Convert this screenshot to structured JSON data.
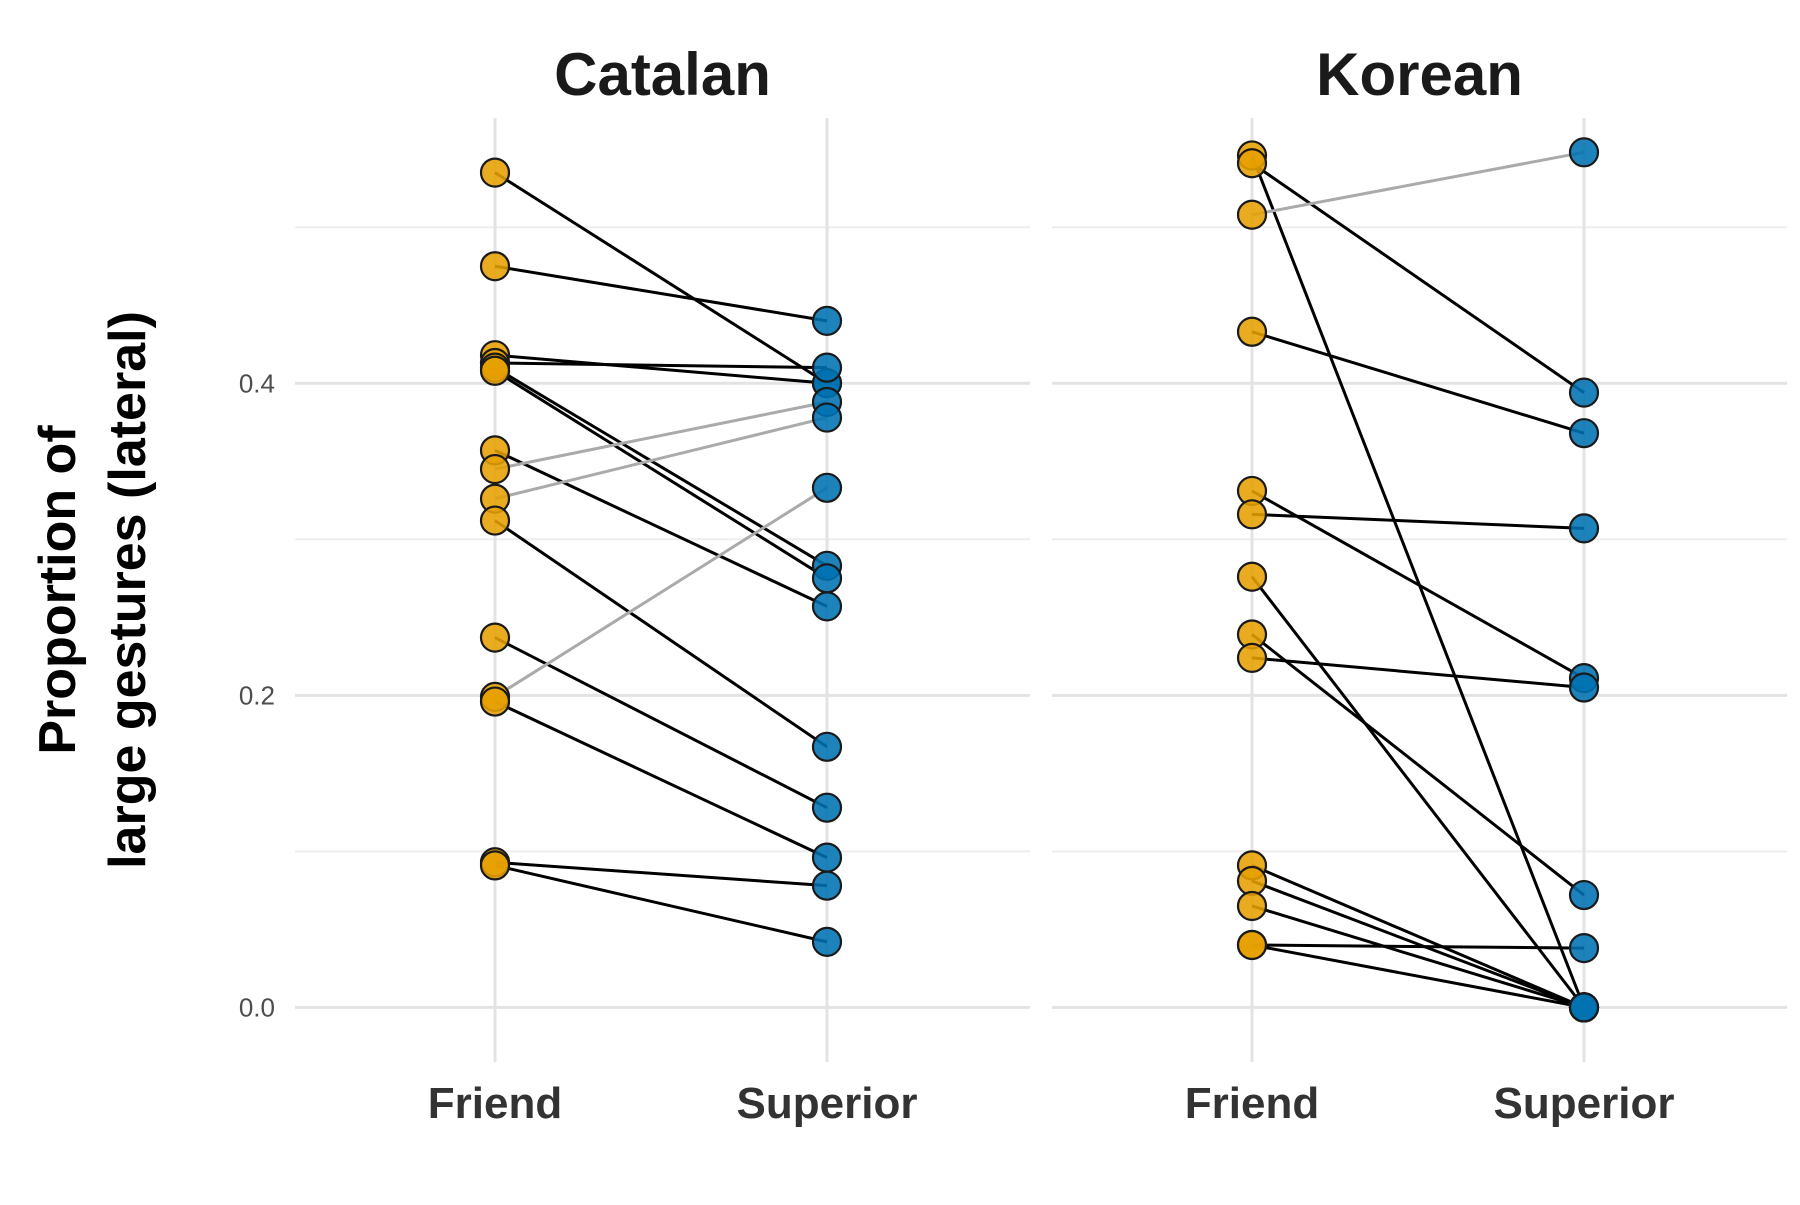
{
  "chart_data": {
    "type": "scatter",
    "subtype": "paired-slope",
    "ylabel_lines": [
      "Proportion of",
      "large gestures (lateral)"
    ],
    "ylim": [
      -0.035,
      0.57
    ],
    "y_ticks": [
      0.0,
      0.2,
      0.4
    ],
    "y_tick_labels": [
      "0.0",
      "0.2",
      "0.4"
    ],
    "y_minor_ticks": [
      0.1,
      0.3,
      0.5
    ],
    "categories": [
      "Friend",
      "Superior"
    ],
    "grid": true,
    "legend": "none",
    "colors": {
      "friend_point": "#E69F00",
      "superior_point": "#0072B2",
      "decrease_line": "#000000",
      "increase_line": "#AAAAAA",
      "grid_major": "#E3E3E3",
      "grid_minor": "#EEEEEE",
      "point_outline": "#1A1A1A"
    },
    "panels": [
      {
        "title": "Catalan",
        "pairs": [
          {
            "friend": 0.535,
            "superior": 0.4
          },
          {
            "friend": 0.475,
            "superior": 0.44
          },
          {
            "friend": 0.418,
            "superior": 0.4
          },
          {
            "friend": 0.413,
            "superior": 0.41
          },
          {
            "friend": 0.41,
            "superior": 0.283
          },
          {
            "friend": 0.408,
            "superior": 0.275
          },
          {
            "friend": 0.357,
            "superior": 0.257
          },
          {
            "friend": 0.345,
            "superior": 0.388
          },
          {
            "friend": 0.326,
            "superior": 0.378
          },
          {
            "friend": 0.312,
            "superior": 0.167
          },
          {
            "friend": 0.237,
            "superior": 0.128
          },
          {
            "friend": 0.199,
            "superior": 0.333
          },
          {
            "friend": 0.196,
            "superior": 0.096
          },
          {
            "friend": 0.093,
            "superior": 0.078
          },
          {
            "friend": 0.091,
            "superior": 0.042
          }
        ]
      },
      {
        "title": "Korean",
        "pairs": [
          {
            "friend": 0.546,
            "superior": 0.0
          },
          {
            "friend": 0.541,
            "superior": 0.394
          },
          {
            "friend": 0.508,
            "superior": 0.548
          },
          {
            "friend": 0.433,
            "superior": 0.368
          },
          {
            "friend": 0.331,
            "superior": 0.211
          },
          {
            "friend": 0.316,
            "superior": 0.307
          },
          {
            "friend": 0.276,
            "superior": 0.0
          },
          {
            "friend": 0.239,
            "superior": 0.072
          },
          {
            "friend": 0.224,
            "superior": 0.205
          },
          {
            "friend": 0.091,
            "superior": 0.0
          },
          {
            "friend": 0.081,
            "superior": 0.0
          },
          {
            "friend": 0.065,
            "superior": 0.0
          },
          {
            "friend": 0.04,
            "superior": 0.0
          },
          {
            "friend": 0.04,
            "superior": 0.038
          }
        ]
      }
    ]
  }
}
